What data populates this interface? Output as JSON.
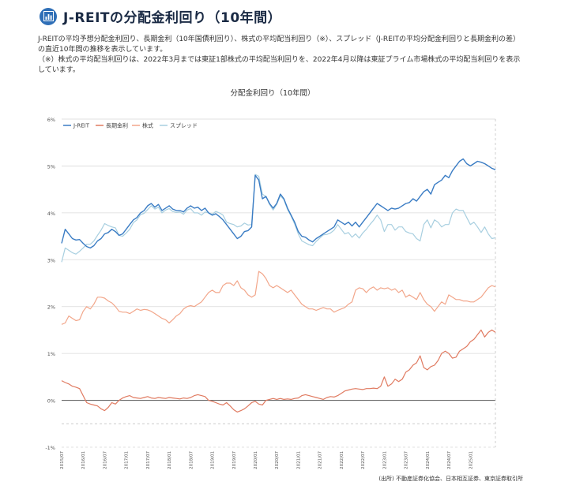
{
  "header": {
    "icon": "bar-chart-icon",
    "title": "J-REITの分配金利回り（10年間）",
    "accent": "#2f6fb7"
  },
  "description": {
    "line1": "J-REITの平均予想分配金利回り、長期金利（10年国債利回り）、株式の平均配当利回り（※）、スプレッド（J-REITの平均分配金利回りと長期金利の差）の直近10年間の推移を表示しています。",
    "note": "（※）株式の平均配当利回りは、2022年3月までは東証1部株式の平均配当利回りを、2022年4月以降は東証プライム市場株式の平均配当利回りを表示しています。"
  },
  "source": "(出所) 不動産証券化協会、日本相互証券、東京証券取引所",
  "chart_data": {
    "type": "line",
    "title": "分配金利回り（10年間）",
    "ylim": [
      -1,
      6
    ],
    "yticks": [
      "-1%",
      "0%",
      "1%",
      "2%",
      "3%",
      "4%",
      "5%",
      "6%"
    ],
    "ytick_values": [
      -1,
      0,
      1,
      2,
      3,
      4,
      5,
      6
    ],
    "xlim": [
      2015.5,
      2025.583
    ],
    "x_ticks": [
      "2015/07",
      "2016/01",
      "2016/07",
      "2017/01",
      "2017/07",
      "2018/01",
      "2018/07",
      "2019/01",
      "2019/07",
      "2020/01",
      "2020/07",
      "2021/01",
      "2021/07",
      "2022/01",
      "2022/07",
      "2023/01",
      "2023/07",
      "2024/01",
      "2024/07",
      "2025/01"
    ],
    "x_tick_values": [
      2015.5,
      2016.0,
      2016.5,
      2017.0,
      2017.5,
      2018.0,
      2018.5,
      2019.0,
      2019.5,
      2020.0,
      2020.5,
      2021.0,
      2021.5,
      2022.0,
      2022.5,
      2023.0,
      2023.5,
      2024.0,
      2024.5,
      2025.0
    ],
    "legend_position": "top-left",
    "grid": true,
    "series": [
      {
        "name": "J-REIT",
        "color": "#3a7cc4",
        "x": [
          2015.5,
          2015.583,
          2015.667,
          2015.75,
          2015.833,
          2015.917,
          2016.0,
          2016.083,
          2016.167,
          2016.25,
          2016.333,
          2016.417,
          2016.5,
          2016.583,
          2016.667,
          2016.75,
          2016.833,
          2016.917,
          2017.0,
          2017.083,
          2017.167,
          2017.25,
          2017.333,
          2017.417,
          2017.5,
          2017.583,
          2017.667,
          2017.75,
          2017.833,
          2017.917,
          2018.0,
          2018.083,
          2018.167,
          2018.25,
          2018.333,
          2018.417,
          2018.5,
          2018.583,
          2018.667,
          2018.75,
          2018.833,
          2018.917,
          2019.0,
          2019.083,
          2019.167,
          2019.25,
          2019.333,
          2019.417,
          2019.5,
          2019.583,
          2019.667,
          2019.75,
          2019.833,
          2019.917,
          2020.0,
          2020.083,
          2020.167,
          2020.25,
          2020.333,
          2020.417,
          2020.5,
          2020.583,
          2020.667,
          2020.75,
          2020.833,
          2020.917,
          2021.0,
          2021.083,
          2021.167,
          2021.25,
          2021.333,
          2021.417,
          2021.5,
          2021.583,
          2021.667,
          2021.75,
          2021.833,
          2021.917,
          2022.0,
          2022.083,
          2022.167,
          2022.25,
          2022.333,
          2022.417,
          2022.5,
          2022.583,
          2022.667,
          2022.75,
          2022.833,
          2022.917,
          2023.0,
          2023.083,
          2023.167,
          2023.25,
          2023.333,
          2023.417,
          2023.5,
          2023.583,
          2023.667,
          2023.75,
          2023.833,
          2023.917,
          2024.0,
          2024.083,
          2024.167,
          2024.25,
          2024.333,
          2024.417,
          2024.5,
          2024.583,
          2024.667,
          2024.75,
          2024.833,
          2024.917,
          2025.0,
          2025.083,
          2025.167,
          2025.25,
          2025.333,
          2025.417,
          2025.5,
          2025.583
        ],
        "values": [
          3.35,
          3.65,
          3.55,
          3.45,
          3.42,
          3.43,
          3.35,
          3.28,
          3.25,
          3.3,
          3.4,
          3.45,
          3.55,
          3.58,
          3.65,
          3.6,
          3.52,
          3.55,
          3.65,
          3.75,
          3.85,
          3.9,
          4.0,
          4.05,
          4.15,
          4.2,
          4.12,
          4.18,
          4.05,
          4.1,
          4.15,
          4.08,
          4.05,
          4.05,
          4.02,
          4.1,
          4.15,
          4.1,
          4.12,
          4.05,
          4.1,
          4.0,
          3.95,
          3.98,
          3.92,
          3.85,
          3.75,
          3.65,
          3.55,
          3.45,
          3.5,
          3.6,
          3.62,
          3.7,
          4.8,
          4.7,
          4.3,
          4.35,
          4.2,
          4.1,
          4.2,
          4.4,
          4.3,
          4.1,
          3.95,
          3.8,
          3.6,
          3.5,
          3.48,
          3.42,
          3.38,
          3.45,
          3.5,
          3.55,
          3.6,
          3.65,
          3.7,
          3.85,
          3.8,
          3.75,
          3.8,
          3.72,
          3.8,
          3.7,
          3.8,
          3.9,
          4.0,
          4.1,
          4.2,
          4.15,
          4.1,
          4.05,
          4.1,
          4.08,
          4.1,
          4.15,
          4.2,
          4.22,
          4.3,
          4.25,
          4.35,
          4.45,
          4.5,
          4.4,
          4.6,
          4.65,
          4.7,
          4.8,
          4.75,
          4.9,
          5.0,
          5.1,
          5.15,
          5.05,
          5.0,
          5.05,
          5.1,
          5.08,
          5.05,
          5.0,
          4.95,
          4.92
        ]
      },
      {
        "name": "長期金利",
        "color": "#e07a60",
        "x": [
          2015.5,
          2015.583,
          2015.667,
          2015.75,
          2015.833,
          2015.917,
          2016.0,
          2016.083,
          2016.167,
          2016.25,
          2016.333,
          2016.417,
          2016.5,
          2016.583,
          2016.667,
          2016.75,
          2016.833,
          2016.917,
          2017.0,
          2017.083,
          2017.167,
          2017.25,
          2017.333,
          2017.417,
          2017.5,
          2017.583,
          2017.667,
          2017.75,
          2017.833,
          2017.917,
          2018.0,
          2018.083,
          2018.167,
          2018.25,
          2018.333,
          2018.417,
          2018.5,
          2018.583,
          2018.667,
          2018.75,
          2018.833,
          2018.917,
          2019.0,
          2019.083,
          2019.167,
          2019.25,
          2019.333,
          2019.417,
          2019.5,
          2019.583,
          2019.667,
          2019.75,
          2019.833,
          2019.917,
          2020.0,
          2020.083,
          2020.167,
          2020.25,
          2020.333,
          2020.417,
          2020.5,
          2020.583,
          2020.667,
          2020.75,
          2020.833,
          2020.917,
          2021.0,
          2021.083,
          2021.167,
          2021.25,
          2021.333,
          2021.417,
          2021.5,
          2021.583,
          2021.667,
          2021.75,
          2021.833,
          2021.917,
          2022.0,
          2022.083,
          2022.167,
          2022.25,
          2022.333,
          2022.417,
          2022.5,
          2022.583,
          2022.667,
          2022.75,
          2022.833,
          2022.917,
          2023.0,
          2023.083,
          2023.167,
          2023.25,
          2023.333,
          2023.417,
          2023.5,
          2023.583,
          2023.667,
          2023.75,
          2023.833,
          2023.917,
          2024.0,
          2024.083,
          2024.167,
          2024.25,
          2024.333,
          2024.417,
          2024.5,
          2024.583,
          2024.667,
          2024.75,
          2024.833,
          2024.917,
          2025.0,
          2025.083,
          2025.167,
          2025.25,
          2025.333,
          2025.417,
          2025.5,
          2025.583
        ],
        "values": [
          0.42,
          0.38,
          0.35,
          0.3,
          0.28,
          0.25,
          0.1,
          -0.05,
          -0.08,
          -0.1,
          -0.12,
          -0.18,
          -0.22,
          -0.15,
          -0.05,
          -0.08,
          0.0,
          0.05,
          0.08,
          0.1,
          0.06,
          0.05,
          0.04,
          0.06,
          0.08,
          0.05,
          0.04,
          0.06,
          0.05,
          0.04,
          0.06,
          0.05,
          0.04,
          0.03,
          0.05,
          0.04,
          0.06,
          0.1,
          0.12,
          0.1,
          0.08,
          0.0,
          -0.02,
          -0.05,
          -0.08,
          -0.1,
          -0.05,
          -0.12,
          -0.2,
          -0.25,
          -0.22,
          -0.18,
          -0.12,
          -0.05,
          -0.02,
          -0.08,
          -0.1,
          0.0,
          0.02,
          0.04,
          0.02,
          0.04,
          0.02,
          0.03,
          0.02,
          0.04,
          0.05,
          0.1,
          0.12,
          0.1,
          0.08,
          0.06,
          0.04,
          0.02,
          0.06,
          0.08,
          0.07,
          0.1,
          0.15,
          0.2,
          0.22,
          0.24,
          0.25,
          0.24,
          0.23,
          0.25,
          0.25,
          0.26,
          0.25,
          0.3,
          0.5,
          0.3,
          0.35,
          0.45,
          0.4,
          0.45,
          0.6,
          0.65,
          0.75,
          0.8,
          0.95,
          0.7,
          0.65,
          0.72,
          0.75,
          0.85,
          1.0,
          1.05,
          1.0,
          0.9,
          0.92,
          1.05,
          1.1,
          1.15,
          1.25,
          1.3,
          1.4,
          1.5,
          1.35,
          1.45,
          1.5,
          1.45
        ]
      },
      {
        "name": "株式",
        "color": "#f2a68a",
        "x": [
          2015.5,
          2015.583,
          2015.667,
          2015.75,
          2015.833,
          2015.917,
          2016.0,
          2016.083,
          2016.167,
          2016.25,
          2016.333,
          2016.417,
          2016.5,
          2016.583,
          2016.667,
          2016.75,
          2016.833,
          2016.917,
          2017.0,
          2017.083,
          2017.167,
          2017.25,
          2017.333,
          2017.417,
          2017.5,
          2017.583,
          2017.667,
          2017.75,
          2017.833,
          2017.917,
          2018.0,
          2018.083,
          2018.167,
          2018.25,
          2018.333,
          2018.417,
          2018.5,
          2018.583,
          2018.667,
          2018.75,
          2018.833,
          2018.917,
          2019.0,
          2019.083,
          2019.167,
          2019.25,
          2019.333,
          2019.417,
          2019.5,
          2019.583,
          2019.667,
          2019.75,
          2019.833,
          2019.917,
          2020.0,
          2020.083,
          2020.167,
          2020.25,
          2020.333,
          2020.417,
          2020.5,
          2020.583,
          2020.667,
          2020.75,
          2020.833,
          2020.917,
          2021.0,
          2021.083,
          2021.167,
          2021.25,
          2021.333,
          2021.417,
          2021.5,
          2021.583,
          2021.667,
          2021.75,
          2021.833,
          2021.917,
          2022.0,
          2022.083,
          2022.167,
          2022.25,
          2022.333,
          2022.417,
          2022.5,
          2022.583,
          2022.667,
          2022.75,
          2022.833,
          2022.917,
          2023.0,
          2023.083,
          2023.167,
          2023.25,
          2023.333,
          2023.417,
          2023.5,
          2023.583,
          2023.667,
          2023.75,
          2023.833,
          2023.917,
          2024.0,
          2024.083,
          2024.167,
          2024.25,
          2024.333,
          2024.417,
          2024.5,
          2024.583,
          2024.667,
          2024.75,
          2024.833,
          2024.917,
          2025.0,
          2025.083,
          2025.167,
          2025.25,
          2025.333,
          2025.417,
          2025.5,
          2025.583
        ],
        "values": [
          1.62,
          1.65,
          1.8,
          1.75,
          1.7,
          1.72,
          1.9,
          2.0,
          1.95,
          2.05,
          2.2,
          2.2,
          2.18,
          2.12,
          2.08,
          2.0,
          1.9,
          1.88,
          1.88,
          1.85,
          1.9,
          1.95,
          1.92,
          1.94,
          1.93,
          1.9,
          1.85,
          1.8,
          1.75,
          1.72,
          1.65,
          1.72,
          1.8,
          1.85,
          1.95,
          2.0,
          2.02,
          2.0,
          2.05,
          2.1,
          2.2,
          2.3,
          2.35,
          2.3,
          2.3,
          2.45,
          2.5,
          2.5,
          2.45,
          2.55,
          2.4,
          2.35,
          2.25,
          2.2,
          2.25,
          2.75,
          2.7,
          2.6,
          2.45,
          2.4,
          2.45,
          2.4,
          2.35,
          2.3,
          2.35,
          2.25,
          2.15,
          2.05,
          2.0,
          1.95,
          1.95,
          1.92,
          1.95,
          1.98,
          1.95,
          1.95,
          1.88,
          1.92,
          1.95,
          1.98,
          2.05,
          2.1,
          2.35,
          2.4,
          2.38,
          2.3,
          2.38,
          2.42,
          2.35,
          2.4,
          2.38,
          2.4,
          2.35,
          2.38,
          2.3,
          2.35,
          2.2,
          2.25,
          2.2,
          2.15,
          2.3,
          2.15,
          2.05,
          2.0,
          1.9,
          2.0,
          2.1,
          2.05,
          2.25,
          2.2,
          2.15,
          2.15,
          2.12,
          2.12,
          2.1,
          2.1,
          2.15,
          2.2,
          2.3,
          2.4,
          2.45,
          2.42
        ]
      },
      {
        "name": "スプレッド",
        "color": "#a8cfe0",
        "x": [
          2015.5,
          2015.583,
          2015.667,
          2015.75,
          2015.833,
          2015.917,
          2016.0,
          2016.083,
          2016.167,
          2016.25,
          2016.333,
          2016.417,
          2016.5,
          2016.583,
          2016.667,
          2016.75,
          2016.833,
          2016.917,
          2017.0,
          2017.083,
          2017.167,
          2017.25,
          2017.333,
          2017.417,
          2017.5,
          2017.583,
          2017.667,
          2017.75,
          2017.833,
          2017.917,
          2018.0,
          2018.083,
          2018.167,
          2018.25,
          2018.333,
          2018.417,
          2018.5,
          2018.583,
          2018.667,
          2018.75,
          2018.833,
          2018.917,
          2019.0,
          2019.083,
          2019.167,
          2019.25,
          2019.333,
          2019.417,
          2019.5,
          2019.583,
          2019.667,
          2019.75,
          2019.833,
          2019.917,
          2020.0,
          2020.083,
          2020.167,
          2020.25,
          2020.333,
          2020.417,
          2020.5,
          2020.583,
          2020.667,
          2020.75,
          2020.833,
          2020.917,
          2021.0,
          2021.083,
          2021.167,
          2021.25,
          2021.333,
          2021.417,
          2021.5,
          2021.583,
          2021.667,
          2021.75,
          2021.833,
          2021.917,
          2022.0,
          2022.083,
          2022.167,
          2022.25,
          2022.333,
          2022.417,
          2022.5,
          2022.583,
          2022.667,
          2022.75,
          2022.833,
          2022.917,
          2023.0,
          2023.083,
          2023.167,
          2023.25,
          2023.333,
          2023.417,
          2023.5,
          2023.583,
          2023.667,
          2023.75,
          2023.833,
          2023.917,
          2024.0,
          2024.083,
          2024.167,
          2024.25,
          2024.333,
          2024.417,
          2024.5,
          2024.583,
          2024.667,
          2024.75,
          2024.833,
          2024.917,
          2025.0,
          2025.083,
          2025.167,
          2025.25,
          2025.333,
          2025.417,
          2025.5,
          2025.583
        ],
        "values": [
          2.95,
          3.25,
          3.2,
          3.15,
          3.12,
          3.18,
          3.25,
          3.33,
          3.33,
          3.4,
          3.52,
          3.63,
          3.77,
          3.73,
          3.7,
          3.68,
          3.52,
          3.5,
          3.57,
          3.65,
          3.79,
          3.85,
          3.96,
          3.99,
          4.07,
          4.15,
          4.08,
          4.12,
          4.0,
          4.06,
          4.09,
          4.03,
          4.01,
          4.02,
          3.97,
          4.06,
          4.09,
          4.0,
          4.0,
          3.95,
          4.02,
          4.0,
          3.97,
          4.03,
          4.0,
          3.95,
          3.8,
          3.77,
          3.75,
          3.7,
          3.72,
          3.78,
          3.74,
          3.75,
          4.82,
          4.78,
          4.4,
          4.35,
          4.18,
          4.06,
          4.18,
          4.36,
          4.28,
          4.07,
          3.93,
          3.76,
          3.55,
          3.4,
          3.36,
          3.32,
          3.3,
          3.39,
          3.46,
          3.53,
          3.54,
          3.57,
          3.63,
          3.75,
          3.65,
          3.55,
          3.58,
          3.48,
          3.55,
          3.46,
          3.57,
          3.65,
          3.75,
          3.84,
          3.95,
          3.85,
          3.6,
          3.75,
          3.75,
          3.63,
          3.7,
          3.7,
          3.6,
          3.57,
          3.55,
          3.45,
          3.4,
          3.75,
          3.85,
          3.68,
          3.85,
          3.8,
          3.7,
          3.75,
          3.75,
          4.0,
          4.08,
          4.05,
          4.05,
          3.9,
          3.75,
          3.8,
          3.7,
          3.58,
          3.7,
          3.55,
          3.45,
          3.47
        ]
      }
    ]
  }
}
